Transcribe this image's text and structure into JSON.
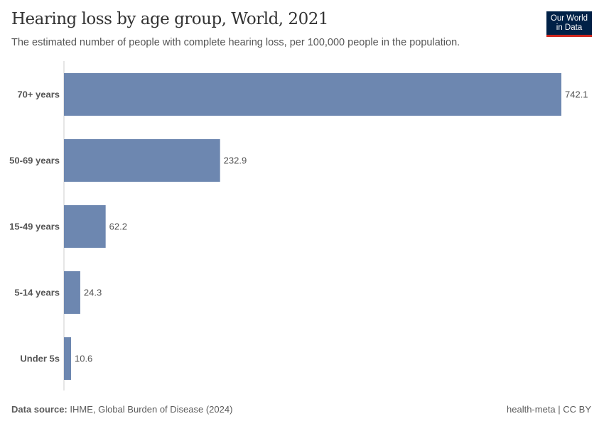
{
  "header": {
    "title": "Hearing loss by age group, World, 2021",
    "subtitle": "The estimated number of people with complete hearing loss, per 100,000 people in the population.",
    "logo_line1": "Our World",
    "logo_line2": "in Data"
  },
  "footer": {
    "source_label": "Data source:",
    "source": "IHME, Global Burden of Disease (2024)",
    "license": "health-meta | CC BY"
  },
  "chart_data": {
    "type": "bar",
    "orientation": "horizontal",
    "categories": [
      "70+ years",
      "50-69 years",
      "15-49 years",
      "5-14 years",
      "Under 5s"
    ],
    "values": [
      742.1,
      232.9,
      62.2,
      24.3,
      10.6
    ],
    "value_labels": [
      "742.1",
      "232.9",
      "62.2",
      "24.3",
      "10.6"
    ],
    "bar_color": "#6d87b0",
    "grid": false,
    "xlim": [
      0,
      742.1
    ]
  }
}
